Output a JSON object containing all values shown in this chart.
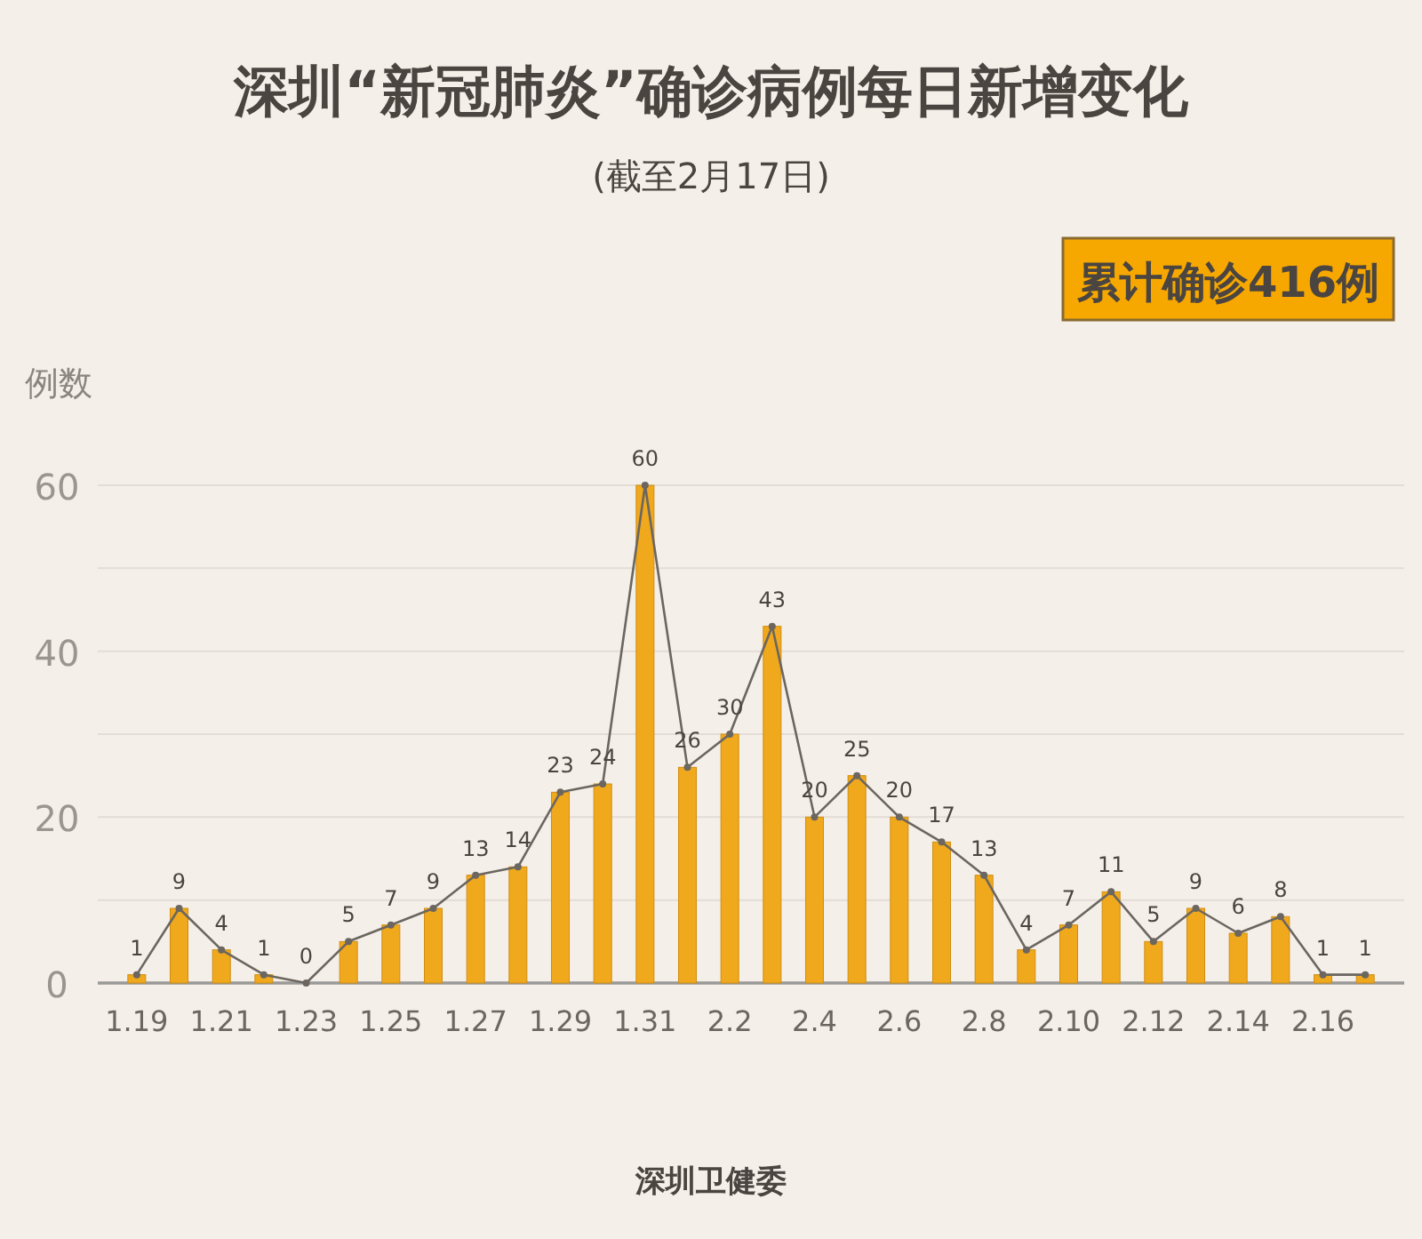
{
  "chart_data": {
    "type": "bar",
    "title": "深圳“新冠肺炎”确诊病例每日新增变化",
    "subtitle": "(截至2月17日)",
    "ylabel": "例数",
    "categories": [
      "1.19",
      null,
      "1.21",
      null,
      "1.23",
      null,
      "1.25",
      null,
      "1.27",
      null,
      "1.29",
      null,
      "1.31",
      null,
      "2.2",
      null,
      "2.4",
      null,
      "2.6",
      null,
      "2.8",
      null,
      "2.10",
      null,
      "2.12",
      null,
      "2.14",
      null,
      "2.16",
      null
    ],
    "series": [
      {
        "color": "#f0a81c",
        "values": [
          1,
          9,
          4,
          1,
          0,
          5,
          7,
          9,
          13,
          14,
          23,
          24,
          60,
          26,
          30,
          43,
          20,
          25,
          20,
          17,
          13,
          4,
          7,
          11,
          5,
          9,
          6,
          8,
          1,
          1
        ]
      },
      {
        "type": "line",
        "color": "#6b6660",
        "values": [
          1,
          9,
          4,
          1,
          0,
          5,
          7,
          9,
          13,
          14,
          23,
          24,
          60,
          26,
          30,
          43,
          20,
          25,
          20,
          17,
          13,
          4,
          7,
          11,
          5,
          9,
          6,
          8,
          1,
          1
        ],
        "value_labels": [
          "1",
          "9",
          "4",
          "1",
          "0",
          "5",
          "7",
          "9",
          "13",
          "14",
          "23",
          "24",
          "60",
          "26",
          "30",
          "43",
          "20",
          "25",
          "20",
          "17",
          "13",
          "4",
          "7",
          "11",
          "5",
          "9",
          "6",
          "8",
          "1",
          "1"
        ]
      }
    ],
    "ylim": [
      0,
      60
    ],
    "yticks": [
      0,
      {
        "value": 10,
        "label": null
      },
      20,
      {
        "value": 30,
        "label": null
      },
      40,
      {
        "value": 50,
        "label": null
      },
      60
    ],
    "grid": "y",
    "marker": "circle",
    "annotations": [
      "累计确诊416例",
      "深圳卫健委"
    ]
  }
}
